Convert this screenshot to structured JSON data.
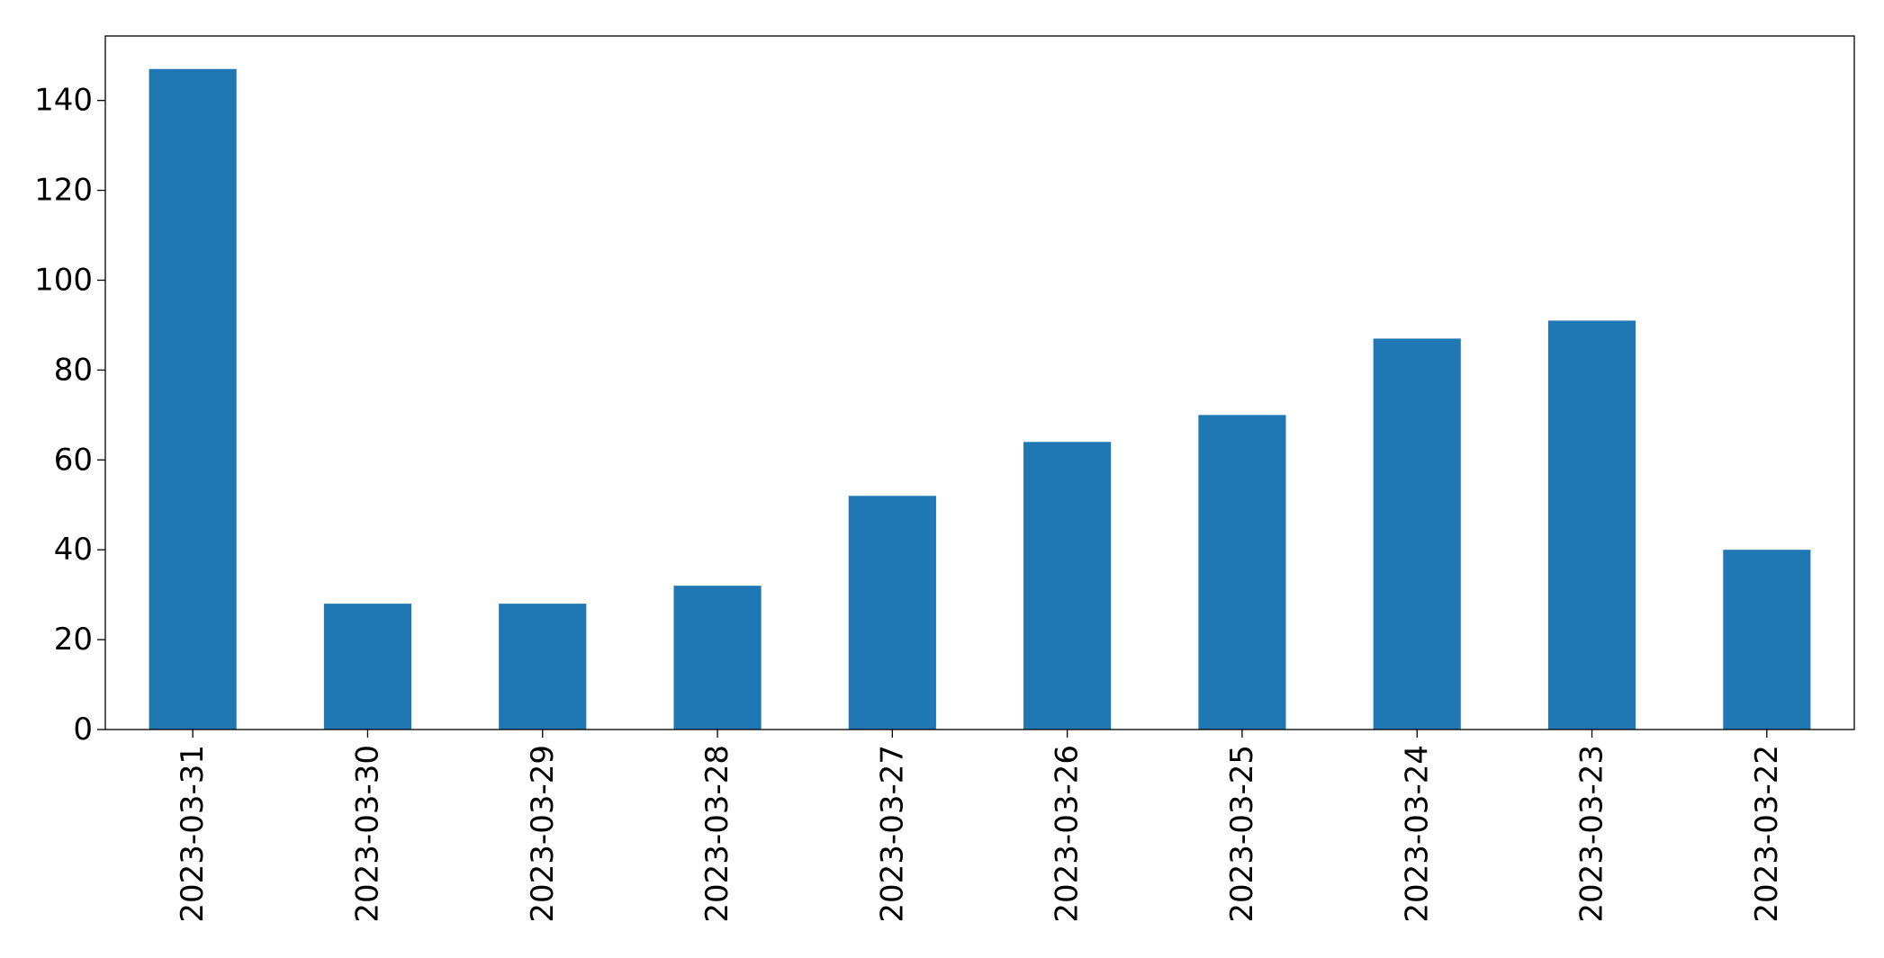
{
  "chart_data": {
    "type": "bar",
    "title": "",
    "xlabel": "",
    "ylabel": "",
    "categories": [
      "2023-03-31",
      "2023-03-30",
      "2023-03-29",
      "2023-03-28",
      "2023-03-27",
      "2023-03-26",
      "2023-03-25",
      "2023-03-24",
      "2023-03-23",
      "2023-03-22"
    ],
    "values": [
      147,
      28,
      28,
      32,
      52,
      64,
      70,
      87,
      91,
      40
    ],
    "ylim": [
      0,
      154.35
    ],
    "yticks": [
      0,
      20,
      40,
      60,
      80,
      100,
      120,
      140
    ],
    "bar_color": "#1f77b4",
    "grid": false,
    "legend": "none"
  }
}
